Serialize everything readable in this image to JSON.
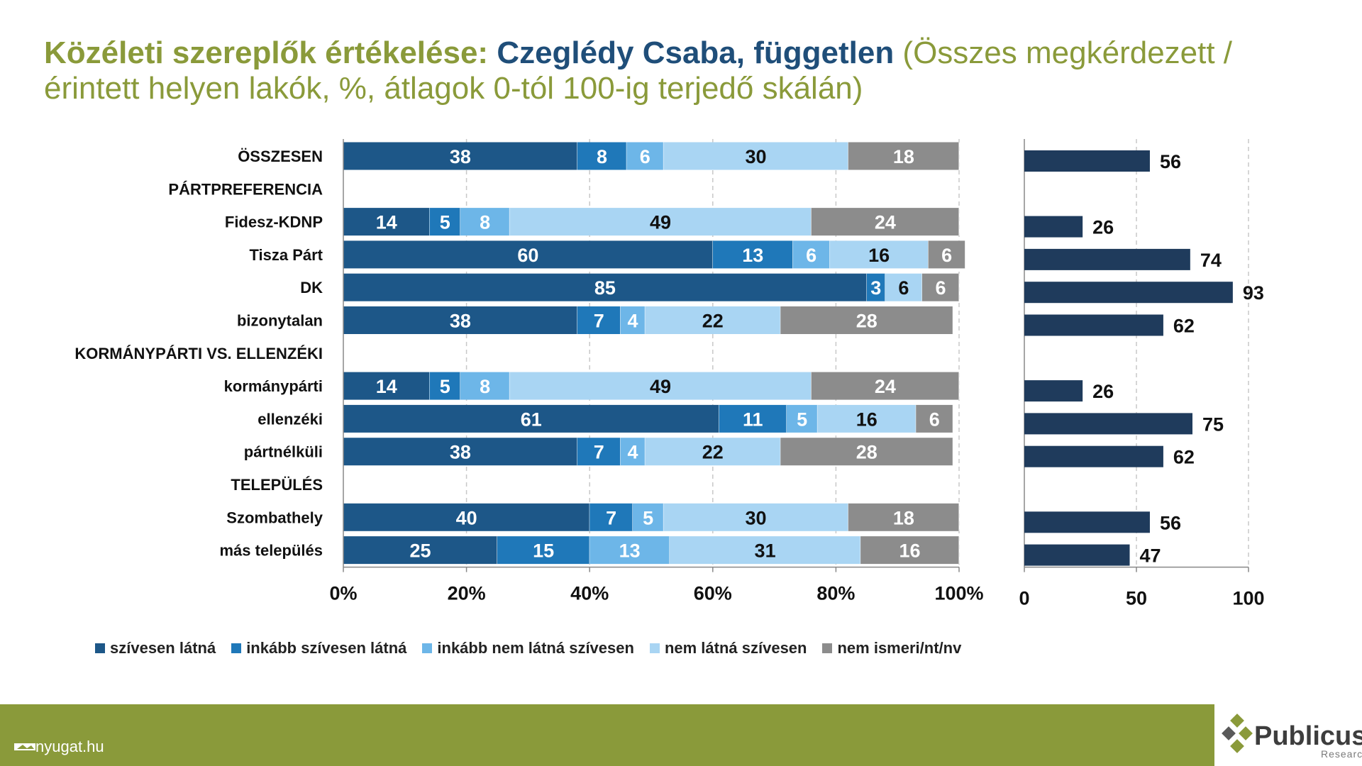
{
  "title": {
    "part1": "Közéleti szereplők értékelése: ",
    "part2": "Czeglédy Csaba, független",
    "part3": " (Összes megkérdezett / érintett helyen lakók, %, átlagok 0-tól 100-ig terjedő skálán)"
  },
  "chart_data": [
    {
      "type": "bar",
      "orientation": "horizontal",
      "stacked": true,
      "rows": [
        "ÖSSZESEN",
        "PÁRTPREFERENCIA",
        "Fidesz-KDNP",
        "Tisza Párt",
        "DK",
        "bizonytalan",
        "KORMÁNYPÁRTI VS. ELLENZÉKI",
        "kormánypárti",
        "ellenzéki",
        "pártnélküli",
        "TELEPÜLÉS",
        "Szombathely",
        "más település"
      ],
      "categories": [
        "ÖSSZESEN",
        "Fidesz-KDNP",
        "Tisza Párt",
        "DK",
        "bizonytalan",
        "kormánypárti",
        "ellenzéki",
        "pártnélküli",
        "Szombathely",
        "más település"
      ],
      "series": [
        {
          "name": "szívesen látná",
          "color": "#1d5788",
          "values": [
            38,
            14,
            60,
            85,
            38,
            14,
            61,
            38,
            40,
            25
          ]
        },
        {
          "name": "inkább szívesen látná",
          "color": "#1f78b9",
          "values": [
            8,
            5,
            13,
            3,
            7,
            5,
            11,
            7,
            7,
            15
          ]
        },
        {
          "name": "inkább nem látná szívesen",
          "color": "#6db6e8",
          "values": [
            6,
            8,
            6,
            0,
            4,
            8,
            5,
            4,
            5,
            13
          ]
        },
        {
          "name": "nem látná szívesen",
          "color": "#a9d5f3",
          "values": [
            30,
            49,
            16,
            6,
            22,
            49,
            16,
            22,
            30,
            31
          ]
        },
        {
          "name": "nem ismeri/nt/nv",
          "color": "#8c8c8c",
          "values": [
            18,
            24,
            6,
            6,
            28,
            24,
            6,
            28,
            18,
            16
          ]
        }
      ],
      "xlim": [
        0,
        100
      ],
      "xticks": [
        "0%",
        "20%",
        "40%",
        "60%",
        "80%",
        "100%"
      ],
      "grid": true,
      "legend": "bottom"
    },
    {
      "type": "bar",
      "orientation": "horizontal",
      "categories": [
        "ÖSSZESEN",
        "Fidesz-KDNP",
        "Tisza Párt",
        "DK",
        "bizonytalan",
        "kormánypárti",
        "ellenzéki",
        "pártnélküli",
        "Szombathely",
        "más település"
      ],
      "values": [
        56,
        26,
        74,
        93,
        62,
        26,
        75,
        62,
        56,
        47
      ],
      "color": "#1f3b5c",
      "xlim": [
        0,
        100
      ],
      "xticks": [
        "0",
        "50",
        "100"
      ],
      "grid": true
    }
  ],
  "footer": {
    "source": "nyugat.hu",
    "brand": "Publicus",
    "brand_sub": "Research"
  }
}
